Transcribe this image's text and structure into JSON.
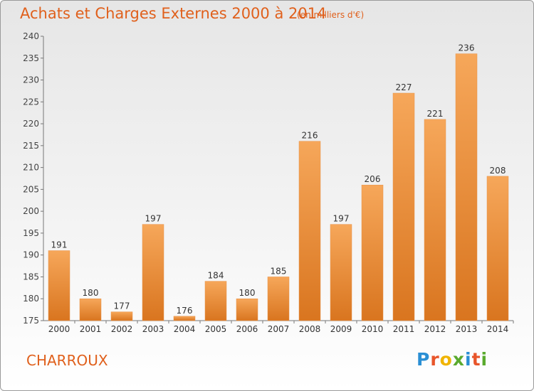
{
  "header": {
    "title": "Achats et Charges Externes 2000 à 2014",
    "subtitle": "(en milliers d'€)"
  },
  "footer": {
    "town": "CHARROUX",
    "logo_text": "Proxiti"
  },
  "colors": {
    "title": "#e0601c",
    "bar_top": "#f6a75a",
    "bar_bottom": "#d9751f"
  },
  "chart_data": {
    "type": "bar",
    "title": "Achats et Charges Externes 2000 à 2014",
    "subtitle": "(en milliers d'€)",
    "categories": [
      "2000",
      "2001",
      "2002",
      "2003",
      "2004",
      "2005",
      "2006",
      "2007",
      "2008",
      "2009",
      "2010",
      "2011",
      "2012",
      "2013",
      "2014"
    ],
    "values": [
      191,
      180,
      177,
      197,
      176,
      184,
      180,
      185,
      216,
      197,
      206,
      227,
      221,
      236,
      208
    ],
    "ylim": [
      175,
      240
    ],
    "yticks": [
      175,
      180,
      185,
      190,
      195,
      200,
      205,
      210,
      215,
      220,
      225,
      230,
      235,
      240
    ],
    "grid": false,
    "data_labels": true
  }
}
